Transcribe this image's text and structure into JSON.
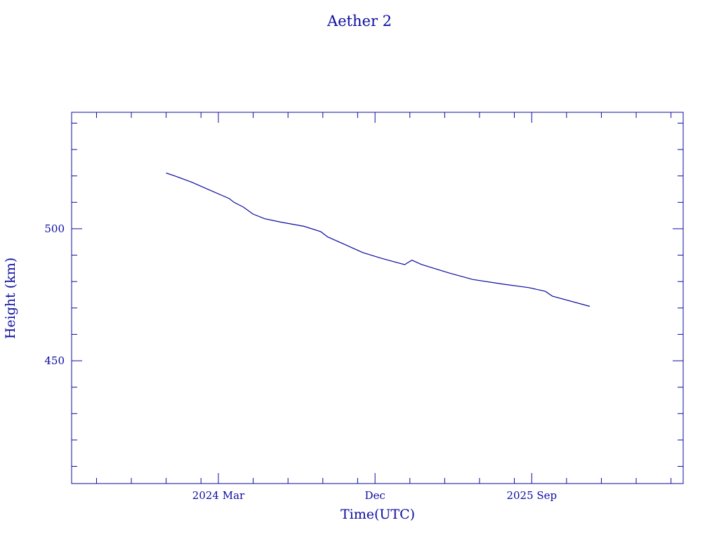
{
  "color": "#0b0ba0",
  "chart_data": {
    "type": "line",
    "title": "Aether 2",
    "xlabel": "Time(UTC)",
    "ylabel": "Height (km)",
    "x_units": "months since 2024 Mar",
    "xlim": [
      -8.43,
      26.7
    ],
    "ylim": [
      403.5,
      544.1
    ],
    "grid": false,
    "x_major_ticks": [
      {
        "value": 0,
        "label": "2024 Mar"
      },
      {
        "value": 9,
        "label": "Dec"
      },
      {
        "value": 18,
        "label": "2025 Sep"
      }
    ],
    "x_minor_ticks": [
      -7,
      -5,
      -3,
      -1,
      2,
      4,
      6,
      8,
      11,
      13,
      15,
      17,
      20,
      22,
      24,
      26
    ],
    "y_major_ticks": [
      {
        "value": 450,
        "label": "450"
      },
      {
        "value": 500,
        "label": "500"
      }
    ],
    "y_minor_ticks": [
      410,
      420,
      430,
      440,
      460,
      470,
      480,
      490,
      510,
      520,
      530,
      540
    ],
    "series": [
      {
        "name": "Aether 2",
        "x": [
          -3.0,
          -2.46,
          -1.52,
          -0.58,
          0.63,
          0.9,
          1.44,
          1.98,
          2.65,
          3.59,
          4.93,
          5.88,
          6.28,
          7.35,
          8.29,
          9.37,
          10.71,
          10.85,
          11.12,
          11.65,
          13.27,
          14.61,
          16.36,
          17.83,
          18.78,
          19.18,
          21.33
        ],
        "y": [
          521.1,
          519.9,
          517.6,
          514.9,
          511.4,
          510.0,
          508.2,
          505.6,
          503.8,
          502.5,
          500.9,
          498.9,
          496.9,
          493.8,
          491.0,
          488.8,
          486.4,
          487.0,
          488.1,
          486.5,
          483.2,
          480.8,
          479.0,
          477.7,
          476.3,
          474.5,
          470.6
        ]
      }
    ]
  }
}
